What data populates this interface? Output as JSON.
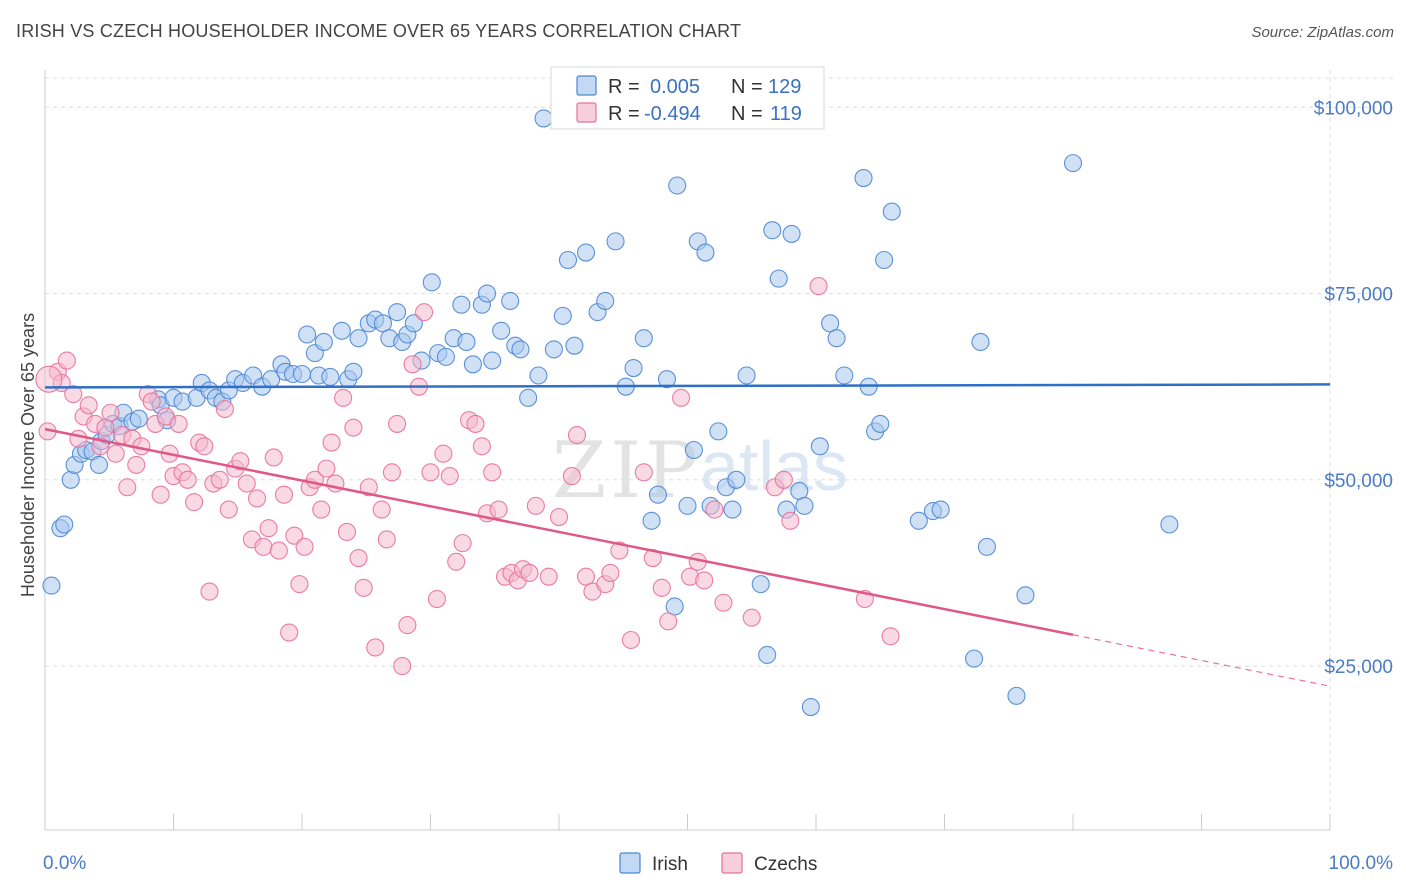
{
  "header": {
    "title": "IRISH VS CZECH HOUSEHOLDER INCOME OVER 65 YEARS CORRELATION CHART",
    "source": "Source: ZipAtlas.com"
  },
  "watermark": {
    "zip": "ZIP",
    "atlas": "atlas"
  },
  "colors": {
    "irish": "#4a86d4",
    "irish_fill": "#a9c8ee",
    "czechs": "#e8709a",
    "czechs_fill": "#f4b9cc",
    "tick_text": "#4a7cc4"
  },
  "legend": {
    "rows": [
      {
        "r_label": "R =",
        "r_value": "0.005",
        "n_label": "N =",
        "n_value": "129"
      },
      {
        "r_label": "R =",
        "r_value": "-0.494",
        "n_label": "N =",
        "n_value": "119"
      }
    ]
  },
  "bottom_legend": [
    "Irish",
    "Czechs"
  ],
  "chart_data": {
    "type": "scatter",
    "title": "IRISH VS CZECH HOUSEHOLDER INCOME OVER 65 YEARS CORRELATION CHART",
    "xlabel": "",
    "ylabel": "Householder Income Over 65 years",
    "xlim": [
      0,
      100
    ],
    "ylim": [
      3000,
      105000
    ],
    "x_tick_labels": [
      "0.0%",
      "100.0%"
    ],
    "y_ticks": [
      25000,
      50000,
      75000,
      100000
    ],
    "y_tick_labels": [
      "$25,000",
      "$50,000",
      "$75,000",
      "$100,000"
    ],
    "grid": true,
    "legend_position": "top-center",
    "series": [
      {
        "name": "Irish",
        "r": 0.005,
        "n": 129,
        "trend": {
          "x0": 0,
          "y0": 62400,
          "x1": 100,
          "y1": 62800
        },
        "points": [
          [
            0.5,
            35800
          ],
          [
            1.2,
            43500
          ],
          [
            1.5,
            44000
          ],
          [
            2.0,
            50000
          ],
          [
            2.3,
            52000
          ],
          [
            2.8,
            53500
          ],
          [
            3.2,
            54000
          ],
          [
            3.7,
            53800
          ],
          [
            4.2,
            52000
          ],
          [
            4.4,
            55200
          ],
          [
            4.8,
            56000
          ],
          [
            5.3,
            57500
          ],
          [
            5.8,
            57200
          ],
          [
            6.1,
            59000
          ],
          [
            6.8,
            57800
          ],
          [
            7.3,
            58200
          ],
          [
            8.8,
            60800
          ],
          [
            9.0,
            60000
          ],
          [
            9.5,
            58000
          ],
          [
            10.0,
            61000
          ],
          [
            10.7,
            60500
          ],
          [
            11.8,
            61000
          ],
          [
            12.2,
            63000
          ],
          [
            12.8,
            62000
          ],
          [
            13.3,
            61000
          ],
          [
            13.8,
            60500
          ],
          [
            14.3,
            62000
          ],
          [
            14.8,
            63500
          ],
          [
            15.4,
            63000
          ],
          [
            16.2,
            64000
          ],
          [
            16.9,
            62500
          ],
          [
            17.6,
            63500
          ],
          [
            18.4,
            65500
          ],
          [
            18.7,
            64500
          ],
          [
            19.3,
            64200
          ],
          [
            20.0,
            64200
          ],
          [
            20.4,
            69500
          ],
          [
            21.0,
            67000
          ],
          [
            21.3,
            64000
          ],
          [
            21.7,
            68500
          ],
          [
            22.2,
            63800
          ],
          [
            23.1,
            70000
          ],
          [
            23.6,
            63500
          ],
          [
            24.0,
            64500
          ],
          [
            24.4,
            69000
          ],
          [
            25.2,
            71000
          ],
          [
            25.7,
            71500
          ],
          [
            26.3,
            71000
          ],
          [
            26.8,
            69000
          ],
          [
            27.4,
            72500
          ],
          [
            27.8,
            68500
          ],
          [
            28.2,
            69500
          ],
          [
            28.7,
            71000
          ],
          [
            29.3,
            66000
          ],
          [
            30.1,
            76500
          ],
          [
            30.6,
            67000
          ],
          [
            31.2,
            66500
          ],
          [
            31.8,
            69000
          ],
          [
            32.4,
            73500
          ],
          [
            32.8,
            68500
          ],
          [
            33.3,
            65500
          ],
          [
            34.0,
            73500
          ],
          [
            34.4,
            75000
          ],
          [
            34.8,
            66000
          ],
          [
            35.5,
            70000
          ],
          [
            36.2,
            74000
          ],
          [
            36.6,
            68000
          ],
          [
            37.0,
            67500
          ],
          [
            37.6,
            61000
          ],
          [
            38.4,
            64000
          ],
          [
            38.8,
            98500
          ],
          [
            39.6,
            67500
          ],
          [
            40.3,
            72000
          ],
          [
            40.7,
            79500
          ],
          [
            41.2,
            68000
          ],
          [
            42.1,
            80500
          ],
          [
            43.0,
            72500
          ],
          [
            43.6,
            74000
          ],
          [
            44.4,
            82000
          ],
          [
            45.2,
            62500
          ],
          [
            45.8,
            65000
          ],
          [
            46.6,
            69000
          ],
          [
            47.2,
            44500
          ],
          [
            47.7,
            48000
          ],
          [
            48.4,
            63500
          ],
          [
            49.0,
            33000
          ],
          [
            49.2,
            89500
          ],
          [
            50.0,
            46500
          ],
          [
            50.5,
            54000
          ],
          [
            50.8,
            82000
          ],
          [
            51.4,
            80500
          ],
          [
            51.8,
            46500
          ],
          [
            52.4,
            56500
          ],
          [
            53.0,
            49000
          ],
          [
            53.5,
            46000
          ],
          [
            53.8,
            50000
          ],
          [
            54.6,
            64000
          ],
          [
            55.7,
            36000
          ],
          [
            56.2,
            26500
          ],
          [
            56.6,
            83500
          ],
          [
            57.1,
            77000
          ],
          [
            57.7,
            46000
          ],
          [
            58.1,
            83000
          ],
          [
            58.7,
            48500
          ],
          [
            59.1,
            46500
          ],
          [
            59.6,
            19500
          ],
          [
            60.3,
            54500
          ],
          [
            61.1,
            71000
          ],
          [
            61.6,
            69000
          ],
          [
            62.2,
            64000
          ],
          [
            63.7,
            90500
          ],
          [
            64.1,
            62500
          ],
          [
            64.6,
            56500
          ],
          [
            65.0,
            57500
          ],
          [
            65.3,
            79500
          ],
          [
            65.9,
            86000
          ],
          [
            68.0,
            44500
          ],
          [
            69.1,
            45800
          ],
          [
            69.7,
            46000
          ],
          [
            72.3,
            26000
          ],
          [
            72.8,
            68500
          ],
          [
            73.3,
            41000
          ],
          [
            75.6,
            21000
          ],
          [
            76.3,
            34500
          ],
          [
            80.0,
            92500
          ],
          [
            87.5,
            44000
          ]
        ]
      },
      {
        "name": "Czechs",
        "r": -0.494,
        "n": 119,
        "trend": {
          "x0": 0,
          "y0": 56800,
          "x1": 80,
          "y1": 29200
        },
        "trend_dashed_to": {
          "x": 100,
          "y": 22300
        },
        "points": [
          [
            0.2,
            56500
          ],
          [
            1.0,
            64500
          ],
          [
            1.3,
            63000
          ],
          [
            1.7,
            66000
          ],
          [
            2.2,
            61500
          ],
          [
            2.6,
            55500
          ],
          [
            3.0,
            58500
          ],
          [
            3.4,
            60000
          ],
          [
            3.9,
            57500
          ],
          [
            4.3,
            54500
          ],
          [
            4.7,
            57000
          ],
          [
            5.1,
            59000
          ],
          [
            5.5,
            53500
          ],
          [
            6.0,
            56000
          ],
          [
            6.4,
            49000
          ],
          [
            6.8,
            55500
          ],
          [
            7.1,
            52000
          ],
          [
            7.5,
            54500
          ],
          [
            8.0,
            61500
          ],
          [
            8.3,
            60500
          ],
          [
            8.6,
            57500
          ],
          [
            9.0,
            48000
          ],
          [
            9.4,
            58500
          ],
          [
            9.7,
            53500
          ],
          [
            10.0,
            50500
          ],
          [
            10.4,
            57500
          ],
          [
            10.7,
            51000
          ],
          [
            11.1,
            50000
          ],
          [
            11.6,
            47000
          ],
          [
            12.0,
            55000
          ],
          [
            12.4,
            54500
          ],
          [
            12.8,
            35000
          ],
          [
            13.1,
            49500
          ],
          [
            13.6,
            50000
          ],
          [
            14.0,
            59500
          ],
          [
            14.3,
            46000
          ],
          [
            14.8,
            51500
          ],
          [
            15.2,
            52500
          ],
          [
            15.7,
            49500
          ],
          [
            16.1,
            42000
          ],
          [
            16.5,
            47500
          ],
          [
            17.0,
            41000
          ],
          [
            17.4,
            43500
          ],
          [
            17.8,
            53000
          ],
          [
            18.2,
            40500
          ],
          [
            18.6,
            48000
          ],
          [
            19.0,
            29500
          ],
          [
            19.4,
            42500
          ],
          [
            19.8,
            36000
          ],
          [
            20.2,
            41000
          ],
          [
            20.6,
            49000
          ],
          [
            21.0,
            50000
          ],
          [
            21.5,
            46000
          ],
          [
            21.9,
            51500
          ],
          [
            22.3,
            55000
          ],
          [
            22.6,
            49500
          ],
          [
            23.2,
            61000
          ],
          [
            23.5,
            43000
          ],
          [
            24.0,
            57000
          ],
          [
            24.4,
            39500
          ],
          [
            24.8,
            35500
          ],
          [
            25.2,
            49000
          ],
          [
            25.7,
            27500
          ],
          [
            26.2,
            46000
          ],
          [
            26.6,
            42000
          ],
          [
            27.0,
            51000
          ],
          [
            27.4,
            57500
          ],
          [
            27.8,
            25000
          ],
          [
            28.2,
            30500
          ],
          [
            28.6,
            65500
          ],
          [
            29.1,
            62500
          ],
          [
            29.5,
            72500
          ],
          [
            30.0,
            51000
          ],
          [
            30.5,
            34000
          ],
          [
            31.0,
            53500
          ],
          [
            31.5,
            50500
          ],
          [
            32.0,
            39000
          ],
          [
            32.5,
            41500
          ],
          [
            33.0,
            58000
          ],
          [
            33.5,
            57500
          ],
          [
            34.0,
            54500
          ],
          [
            34.4,
            45500
          ],
          [
            34.8,
            51000
          ],
          [
            35.3,
            46000
          ],
          [
            35.8,
            37000
          ],
          [
            36.3,
            37500
          ],
          [
            36.8,
            36500
          ],
          [
            37.2,
            38000
          ],
          [
            37.7,
            37500
          ],
          [
            38.2,
            46500
          ],
          [
            39.2,
            37000
          ],
          [
            40.0,
            45000
          ],
          [
            41.0,
            50500
          ],
          [
            41.4,
            56000
          ],
          [
            42.1,
            37000
          ],
          [
            42.6,
            35000
          ],
          [
            43.6,
            36000
          ],
          [
            44.0,
            37500
          ],
          [
            44.7,
            40500
          ],
          [
            45.6,
            28500
          ],
          [
            46.6,
            51000
          ],
          [
            47.3,
            39500
          ],
          [
            48.0,
            35500
          ],
          [
            48.5,
            31000
          ],
          [
            49.5,
            61000
          ],
          [
            50.2,
            37000
          ],
          [
            50.8,
            39000
          ],
          [
            51.3,
            36500
          ],
          [
            52.1,
            46000
          ],
          [
            52.8,
            33500
          ],
          [
            55.0,
            31500
          ],
          [
            56.8,
            49000
          ],
          [
            57.5,
            50000
          ],
          [
            58.0,
            44500
          ],
          [
            60.2,
            76000
          ],
          [
            63.8,
            34000
          ],
          [
            65.8,
            29000
          ]
        ]
      }
    ]
  }
}
